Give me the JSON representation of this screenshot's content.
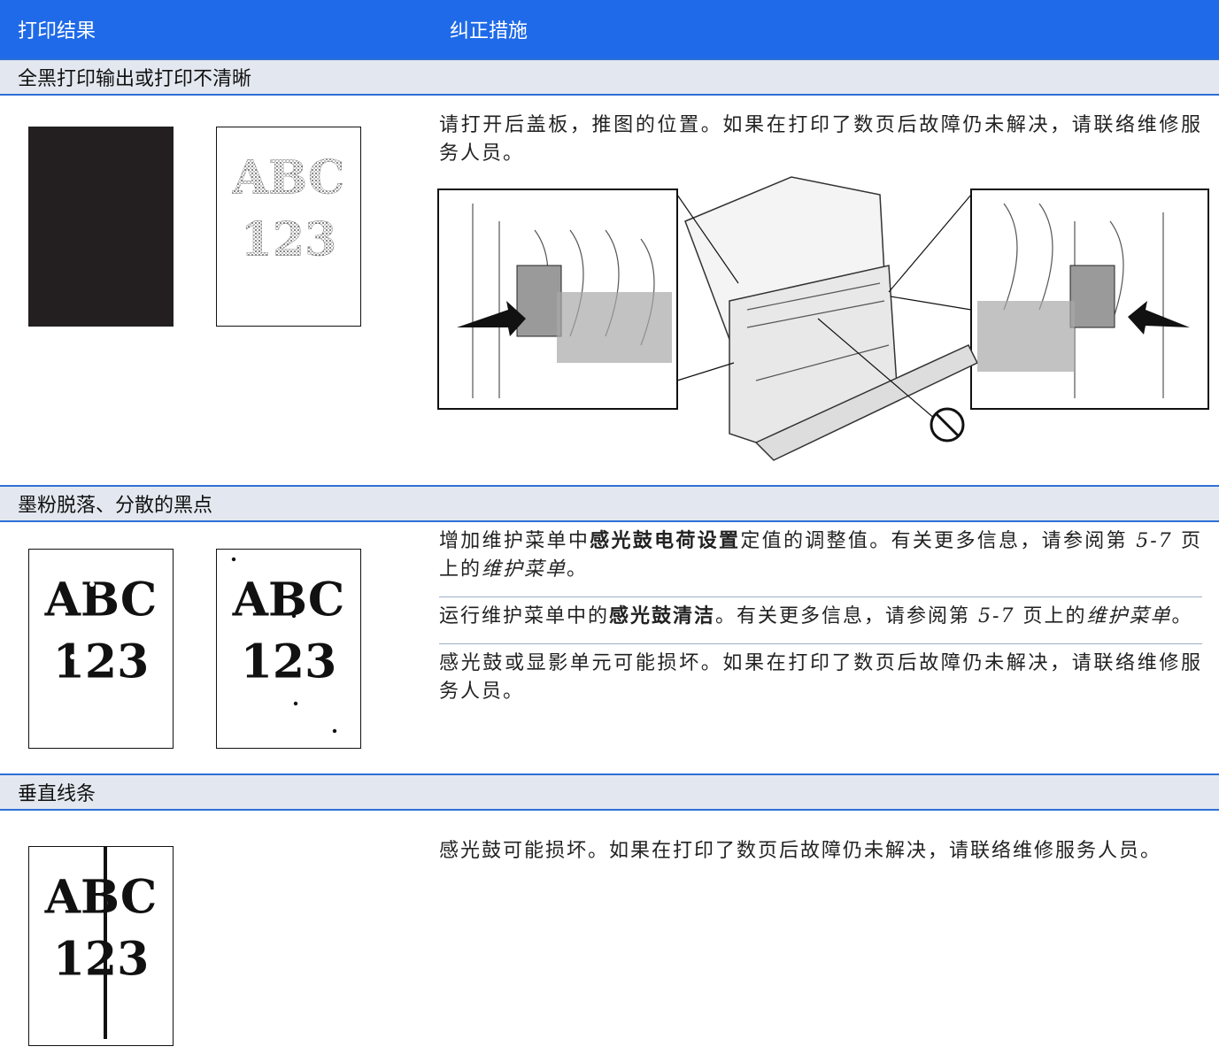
{
  "header": {
    "columns": [
      "打印结果",
      "纠正措施"
    ]
  },
  "sections": [
    {
      "title": "全黑打印输出或打印不清晰",
      "samples": [
        {
          "style": "solid"
        },
        {
          "style": "faded",
          "lines": [
            "ABC",
            "123"
          ]
        }
      ],
      "remedies": [
        [
          "请打开后盖板，推图的位置。如果在打印了数页后故障仍未解决，请联络维修服务人员。"
        ]
      ]
    },
    {
      "title": "墨粉脱落、分散的黑点",
      "samples": [
        {
          "style": "broken",
          "lines": [
            "ABC",
            "123"
          ]
        },
        {
          "style": "dots",
          "lines": [
            "ABC",
            "123"
          ]
        }
      ],
      "remedies": [
        [
          "增加维护菜单中",
          {
            "text": "感光鼓电荷设置",
            "style": "bold"
          },
          "定值的调整值。有关更多信息，请参阅第 ",
          {
            "text": "5-7",
            "style": "italic"
          },
          " 页上的",
          {
            "text": "维护菜单",
            "style": "italic"
          },
          "。"
        ],
        [
          "运行维护菜单中的",
          {
            "text": "感光鼓清洁",
            "style": "bold"
          },
          "。有关更多信息，请参阅第 ",
          {
            "text": "5-7",
            "style": "italic"
          },
          " 页上的",
          {
            "text": "维护菜单",
            "style": "italic"
          },
          "。"
        ],
        [
          "感光鼓或显影单元可能损坏。如果在打印了数页后故障仍未解决，请联络维修服务人员。"
        ]
      ]
    },
    {
      "title": "垂直线条",
      "samples": [
        {
          "style": "streak",
          "lines": [
            "ABC",
            "123"
          ]
        }
      ],
      "remedies": [
        [
          "感光鼓可能损坏。如果在打印了数页后故障仍未解决，请联络维修服务人员。"
        ]
      ]
    }
  ]
}
